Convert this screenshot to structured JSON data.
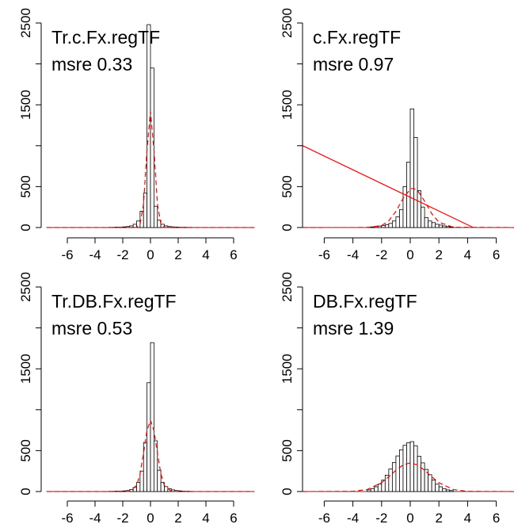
{
  "chart_data": [
    {
      "type": "histogram",
      "title": "Tr.c.Fx.regTF",
      "annotation": "msre 0.33",
      "bins": [
        -3,
        -2.75,
        -2.5,
        -2.25,
        -2,
        -1.75,
        -1.5,
        -1.25,
        -1,
        -0.75,
        -0.5,
        -0.25,
        0,
        0.25,
        0.5,
        0.75,
        1,
        1.25,
        1.5,
        1.75,
        2,
        2.25,
        2.5,
        2.75,
        3
      ],
      "values": [
        2,
        3,
        4,
        5,
        8,
        12,
        20,
        40,
        80,
        200,
        420,
        2480,
        1950,
        260,
        90,
        40,
        20,
        12,
        8,
        5,
        4,
        3,
        2,
        2
      ],
      "density": {
        "x": [
          -7.5,
          -2,
          -1.5,
          -1,
          -0.75,
          -0.5,
          -0.25,
          0,
          0.25,
          0.5,
          0.75,
          1,
          1.5,
          2,
          7.5
        ],
        "values": [
          0,
          0,
          0,
          2,
          39,
          290,
          950,
          1420,
          950,
          290,
          39,
          2,
          0,
          0,
          0
        ]
      },
      "color": "#000000",
      "density_color": "#ff0000",
      "xlim": [
        -7.5,
        7.5
      ],
      "xticks": [
        -6,
        -4,
        -2,
        0,
        2,
        4,
        6
      ],
      "ylim": [
        0,
        2500
      ],
      "yticks": [
        0,
        500,
        1500,
        2500
      ],
      "yticks_unlabeled": [
        1000,
        2000
      ]
    },
    {
      "type": "histogram",
      "title": "c.Fx.regTF",
      "annotation": "msre 0.97",
      "bins": [
        -3,
        -2.75,
        -2.5,
        -2.25,
        -2,
        -1.75,
        -1.5,
        -1.25,
        -1,
        -0.75,
        -0.5,
        -0.25,
        0,
        0.25,
        0.5,
        0.75,
        1,
        1.25,
        1.5,
        1.75,
        2,
        2.25,
        2.5,
        2.75,
        3
      ],
      "values": [
        5,
        8,
        12,
        18,
        25,
        35,
        50,
        80,
        130,
        220,
        500,
        800,
        1450,
        1100,
        450,
        250,
        120,
        80,
        60,
        40,
        30,
        20,
        12,
        8
      ],
      "density": {
        "x": [
          -7.5,
          -3,
          -2,
          -1.5,
          -1,
          -0.5,
          0,
          0.2,
          0.5,
          1,
          1.5,
          2,
          3,
          7.5
        ],
        "values": [
          0,
          1,
          24,
          81,
          197,
          355,
          468,
          480,
          454,
          323,
          169,
          65,
          4,
          0
        ]
      },
      "line": {
        "x": [
          -7.5,
          4.4
        ],
        "values": [
          1000,
          0
        ]
      },
      "color": "#000000",
      "density_color": "#ff0000",
      "xlim": [
        -7.5,
        7.5
      ],
      "xticks": [
        -6,
        -4,
        -2,
        0,
        2,
        4,
        6
      ],
      "ylim": [
        0,
        2500
      ],
      "yticks": [
        0,
        500,
        1500,
        2500
      ],
      "yticks_unlabeled": [
        1000,
        2000
      ]
    },
    {
      "type": "histogram",
      "title": "Tr.DB.Fx.regTF",
      "annotation": "msre 0.53",
      "bins": [
        -3,
        -2.75,
        -2.5,
        -2.25,
        -2,
        -1.75,
        -1.5,
        -1.25,
        -1,
        -0.75,
        -0.5,
        -0.25,
        0,
        0.25,
        0.5,
        0.75,
        1,
        1.25,
        1.5,
        1.75,
        2,
        2.25,
        2.5,
        2.75,
        3
      ],
      "values": [
        2,
        3,
        4,
        5,
        8,
        12,
        25,
        50,
        110,
        250,
        600,
        1330,
        1820,
        620,
        260,
        110,
        60,
        35,
        20,
        12,
        8,
        5,
        3,
        2
      ],
      "density": {
        "x": [
          -7.5,
          -2,
          -1.5,
          -1,
          -0.75,
          -0.5,
          -0.25,
          0,
          0.25,
          0.5,
          0.75,
          1,
          1.5,
          2,
          7.5
        ],
        "values": [
          0,
          0,
          3,
          74,
          217,
          470,
          746,
          870,
          746,
          470,
          217,
          74,
          3,
          0,
          0
        ]
      },
      "color": "#000000",
      "density_color": "#ff0000",
      "xlim": [
        -7.5,
        7.5
      ],
      "xticks": [
        -6,
        -4,
        -2,
        0,
        2,
        4,
        6
      ],
      "ylim": [
        0,
        2500
      ],
      "yticks": [
        0,
        500,
        1500,
        2500
      ],
      "yticks_unlabeled": [
        1000,
        2000
      ]
    },
    {
      "type": "histogram",
      "title": "DB.Fx.regTF",
      "annotation": "msre 1.39",
      "bins": [
        -3,
        -2.75,
        -2.5,
        -2.25,
        -2,
        -1.75,
        -1.5,
        -1.25,
        -1,
        -0.75,
        -0.5,
        -0.25,
        0,
        0.25,
        0.5,
        0.75,
        1,
        1.25,
        1.5,
        1.75,
        2,
        2.25,
        2.5,
        2.75,
        3
      ],
      "values": [
        20,
        35,
        58,
        92,
        140,
        200,
        275,
        355,
        435,
        510,
        565,
        595,
        610,
        560,
        430,
        350,
        270,
        205,
        140,
        90,
        58,
        35,
        20,
        12
      ],
      "density": {
        "x": [
          -7.5,
          -4,
          -3,
          -2,
          -1.5,
          -1,
          -0.5,
          0,
          0.5,
          1,
          1.5,
          2,
          3,
          4,
          7.5
        ],
        "values": [
          0,
          3,
          25,
          108,
          180,
          260,
          325,
          350,
          325,
          260,
          180,
          108,
          25,
          3,
          0
        ]
      },
      "color": "#000000",
      "density_color": "#ff0000",
      "xlim": [
        -7.5,
        7.5
      ],
      "xticks": [
        -6,
        -4,
        -2,
        0,
        2,
        4,
        6
      ],
      "ylim": [
        0,
        2500
      ],
      "yticks": [
        0,
        500,
        1500,
        2500
      ],
      "yticks_unlabeled": [
        1000,
        2000
      ]
    },
    {
      "type": "axis",
      "xlim": [
        -7.5,
        7.5
      ],
      "xticks": [
        -6,
        -4,
        -2,
        0,
        2,
        4,
        6
      ]
    }
  ]
}
